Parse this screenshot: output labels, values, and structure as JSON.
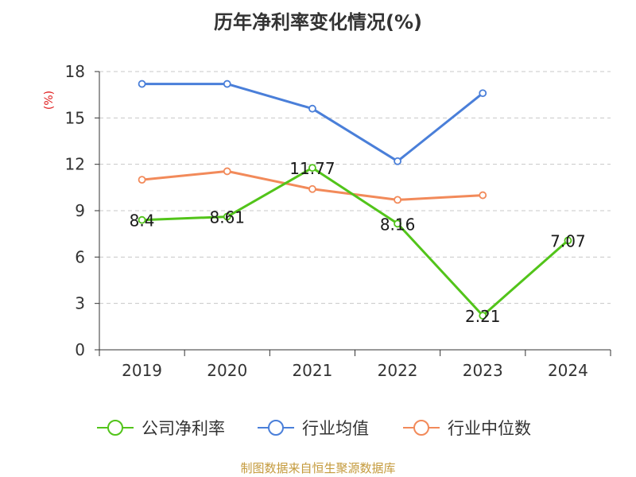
{
  "chart_data": {
    "type": "line",
    "title": "历年净利率变化情况(%)",
    "ylabel": "(%)",
    "xlabel": "",
    "categories": [
      "2019",
      "2020",
      "2021",
      "2022",
      "2023",
      "2024"
    ],
    "yticks": [
      "0",
      "3",
      "6",
      "9",
      "12",
      "15",
      "18"
    ],
    "ylim": [
      0,
      18
    ],
    "grid": true,
    "legend_position": "bottom",
    "series": [
      {
        "name": "公司净利率",
        "color": "#52c41a",
        "values": [
          8.4,
          8.61,
          11.77,
          8.16,
          2.21,
          7.07
        ],
        "labels": [
          "8.4",
          "8.61",
          "11.77",
          "8.16",
          "2.21",
          "7.07"
        ]
      },
      {
        "name": "行业均值",
        "color": "#4a7fd9",
        "values": [
          17.2,
          17.2,
          15.6,
          12.2,
          16.6,
          null
        ]
      },
      {
        "name": "行业中位数",
        "color": "#f28a5a",
        "values": [
          11.0,
          11.55,
          10.4,
          9.7,
          10.0,
          null
        ]
      }
    ]
  },
  "footer": {
    "source": "制图数据来自恒生聚源数据库"
  }
}
